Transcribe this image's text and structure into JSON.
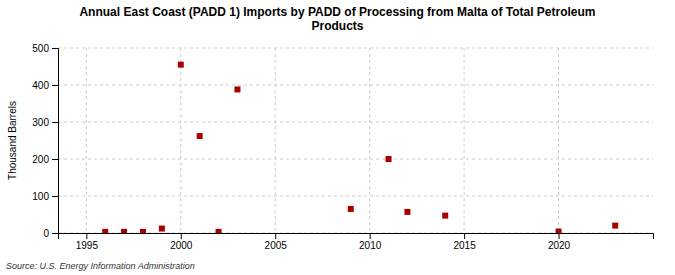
{
  "chart_data": {
    "type": "scatter",
    "title": "Annual East Coast (PADD 1) Imports by PADD of Processing from Malta of Total Petroleum\nProducts",
    "ylabel": "Thousand Barrels",
    "source": "Source: U.S. Energy Information Administration",
    "x": [
      1996,
      1997,
      1998,
      1999,
      2000,
      2001,
      2002,
      2003,
      2009,
      2011,
      2012,
      2014,
      2020,
      2023
    ],
    "values": [
      3,
      3,
      3,
      12,
      455,
      262,
      3,
      388,
      65,
      200,
      57,
      47,
      4,
      20
    ],
    "color": "#aa0000",
    "marker": "square",
    "xlim": [
      1993.5,
      2025
    ],
    "ylim": [
      0,
      500
    ],
    "xticks": [
      1995,
      2000,
      2005,
      2010,
      2015,
      2020
    ],
    "yticks": [
      0,
      100,
      200,
      300,
      400,
      500
    ],
    "grid": true
  }
}
